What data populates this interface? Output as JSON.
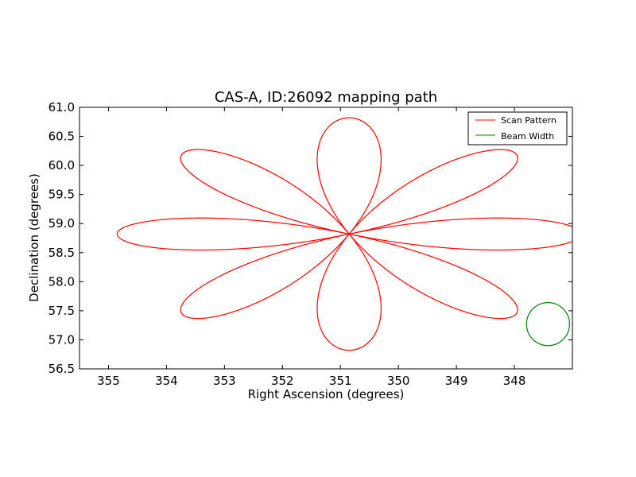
{
  "chart_data": {
    "type": "line",
    "title": "CAS-A, ID:26092 mapping path",
    "xlabel": "Right Ascension (degrees)",
    "ylabel": "Declination (degrees)",
    "xlim": [
      355.5,
      347.0
    ],
    "ylim": [
      56.5,
      61.0
    ],
    "x_ticks": [
      355,
      354,
      353,
      352,
      351,
      350,
      349,
      348
    ],
    "x_tick_labels": [
      "355",
      "354",
      "353",
      "352",
      "351",
      "350",
      "349",
      "348"
    ],
    "y_ticks": [
      56.5,
      57.0,
      57.5,
      58.0,
      58.5,
      59.0,
      59.5,
      60.0,
      60.5,
      61.0
    ],
    "y_tick_labels": [
      "56.5",
      "57.0",
      "57.5",
      "58.0",
      "58.5",
      "59.0",
      "59.5",
      "60.0",
      "60.5",
      "61.0"
    ],
    "grid": false,
    "legend_position": "top-right",
    "series": [
      {
        "name": "Scan Pattern",
        "color": "#ff0000",
        "center": [
          350.85,
          58.82
        ],
        "petals": 8,
        "petal_length_ra": 4.0,
        "petal_length_dec": 2.0,
        "petal_width": 0.45
      },
      {
        "name": "Beam Width",
        "color": "#008000",
        "center": [
          347.42,
          57.27
        ],
        "radius_dec": 0.37
      }
    ]
  }
}
